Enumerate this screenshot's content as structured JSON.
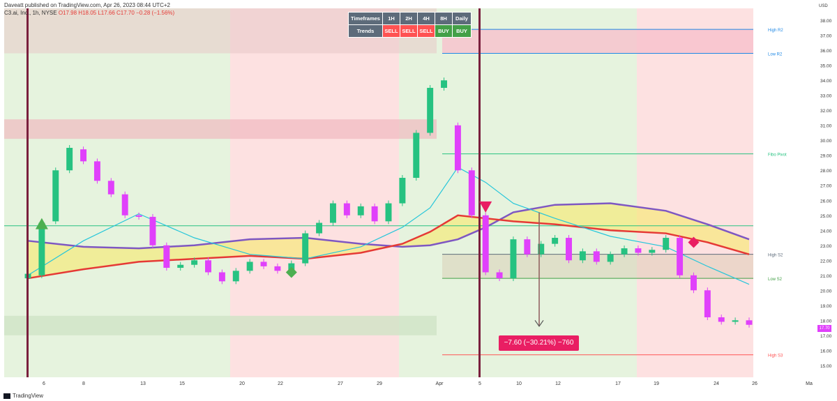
{
  "header": {
    "published": "Daveatt published on TradingView.com, Apr 26, 2023 08:44 UTC+2",
    "symbol": "C3.ai, Inc., 1h, NYSE",
    "ohlc": "O17.98 H18.05 L17.66 C17.70 −0.28 (−1.56%)"
  },
  "trend_table": {
    "head_label": "Timeframes",
    "row_label": "Trends",
    "timeframes": [
      "1H",
      "2H",
      "4H",
      "8H",
      "Daily"
    ],
    "trends": [
      "SELL",
      "SELL",
      "SELL",
      "BUY",
      "BUY"
    ]
  },
  "measure": {
    "label": "−7.60 (−30.21%) −760"
  },
  "price_tag": "17.70",
  "footer": {
    "brand": "TradingView"
  },
  "colors": {
    "bull": "#26c281",
    "bear": "#e040fb",
    "fast_ma": "#26c6da",
    "mid_ma": "#e53935",
    "slow_ma": "#7e57c2",
    "buy_zone": "#e6f3de",
    "sell_zone": "#fde1e1",
    "fill": "#f7e96a"
  },
  "chart_data": {
    "type": "line",
    "yaxis": {
      "unit": "USD",
      "ylim": [
        14.2,
        38.8
      ],
      "ticks": [
        15,
        16,
        17,
        18,
        19,
        20,
        21,
        22,
        23,
        24,
        25,
        26,
        27,
        28,
        29,
        30,
        31,
        32,
        33,
        34,
        35,
        36,
        37,
        38
      ]
    },
    "xaxis": {
      "tick_labels": [
        "6",
        "8",
        "13",
        "15",
        "20",
        "22",
        "27",
        "29",
        "Apr",
        "5",
        "10",
        "12",
        "17",
        "19",
        "24",
        "26",
        "Ma"
      ]
    },
    "price_series": [
      {
        "x": 0,
        "o": 20.8,
        "c": 21.1
      },
      {
        "x": 1,
        "o": 21.0,
        "c": 24.5
      },
      {
        "x": 2,
        "o": 24.6,
        "c": 28.0
      },
      {
        "x": 3,
        "o": 28.0,
        "c": 29.5
      },
      {
        "x": 4,
        "o": 29.4,
        "c": 28.6
      },
      {
        "x": 5,
        "o": 28.6,
        "c": 27.3
      },
      {
        "x": 6,
        "o": 27.3,
        "c": 26.4
      },
      {
        "x": 7,
        "o": 26.4,
        "c": 25.0
      },
      {
        "x": 8,
        "o": 25.0,
        "c": 24.9
      },
      {
        "x": 9,
        "o": 24.9,
        "c": 23.0
      },
      {
        "x": 10,
        "o": 23.0,
        "c": 21.5
      },
      {
        "x": 11,
        "o": 21.5,
        "c": 21.7
      },
      {
        "x": 12,
        "o": 21.7,
        "c": 22.0
      },
      {
        "x": 13,
        "o": 22.0,
        "c": 21.2
      },
      {
        "x": 14,
        "o": 21.2,
        "c": 20.6
      },
      {
        "x": 15,
        "o": 20.6,
        "c": 21.3
      },
      {
        "x": 16,
        "o": 21.3,
        "c": 21.9
      },
      {
        "x": 17,
        "o": 21.9,
        "c": 21.6
      },
      {
        "x": 18,
        "o": 21.6,
        "c": 21.3
      },
      {
        "x": 19,
        "o": 21.3,
        "c": 21.8
      },
      {
        "x": 20,
        "o": 21.8,
        "c": 23.8
      },
      {
        "x": 21,
        "o": 23.8,
        "c": 24.5
      },
      {
        "x": 22,
        "o": 24.5,
        "c": 25.8
      },
      {
        "x": 23,
        "o": 25.8,
        "c": 25.0
      },
      {
        "x": 24,
        "o": 25.0,
        "c": 25.6
      },
      {
        "x": 25,
        "o": 25.6,
        "c": 24.6
      },
      {
        "x": 26,
        "o": 24.6,
        "c": 25.8
      },
      {
        "x": 27,
        "o": 25.8,
        "c": 27.5
      },
      {
        "x": 28,
        "o": 27.5,
        "c": 30.5
      },
      {
        "x": 29,
        "o": 30.5,
        "c": 33.5
      },
      {
        "x": 30,
        "o": 33.5,
        "c": 34.0
      },
      {
        "x": 31,
        "o": 31.0,
        "c": 28.0
      },
      {
        "x": 32,
        "o": 28.0,
        "c": 25.0
      },
      {
        "x": 33,
        "o": 25.0,
        "c": 21.2
      },
      {
        "x": 34,
        "o": 21.2,
        "c": 20.8
      },
      {
        "x": 35,
        "o": 20.8,
        "c": 23.4
      },
      {
        "x": 36,
        "o": 23.4,
        "c": 22.4
      },
      {
        "x": 37,
        "o": 22.4,
        "c": 23.1
      },
      {
        "x": 38,
        "o": 23.1,
        "c": 23.5
      },
      {
        "x": 39,
        "o": 23.5,
        "c": 22.0
      },
      {
        "x": 40,
        "o": 22.0,
        "c": 22.6
      },
      {
        "x": 41,
        "o": 22.6,
        "c": 21.9
      },
      {
        "x": 42,
        "o": 21.9,
        "c": 22.4
      },
      {
        "x": 43,
        "o": 22.4,
        "c": 22.8
      },
      {
        "x": 44,
        "o": 22.8,
        "c": 22.5
      },
      {
        "x": 45,
        "o": 22.5,
        "c": 22.7
      },
      {
        "x": 46,
        "o": 22.7,
        "c": 23.5
      },
      {
        "x": 47,
        "o": 23.5,
        "c": 21.0
      },
      {
        "x": 48,
        "o": 21.0,
        "c": 20.0
      },
      {
        "x": 49,
        "o": 20.0,
        "c": 18.2
      },
      {
        "x": 50,
        "o": 18.2,
        "c": 17.9
      },
      {
        "x": 51,
        "o": 17.9,
        "c": 18.0
      },
      {
        "x": 52,
        "o": 18.0,
        "c": 17.7
      }
    ],
    "fast_ma": [
      {
        "x": 0,
        "y": 21.0
      },
      {
        "x": 4,
        "y": 23.3
      },
      {
        "x": 8,
        "y": 25.1
      },
      {
        "x": 12,
        "y": 23.5
      },
      {
        "x": 16,
        "y": 22.4
      },
      {
        "x": 20,
        "y": 22.1
      },
      {
        "x": 24,
        "y": 22.9
      },
      {
        "x": 27,
        "y": 24.2
      },
      {
        "x": 29,
        "y": 25.5
      },
      {
        "x": 31,
        "y": 28.2
      },
      {
        "x": 33,
        "y": 27.2
      },
      {
        "x": 35,
        "y": 25.8
      },
      {
        "x": 38,
        "y": 24.8
      },
      {
        "x": 42,
        "y": 23.6
      },
      {
        "x": 46,
        "y": 22.9
      },
      {
        "x": 49,
        "y": 21.6
      },
      {
        "x": 52,
        "y": 20.4
      }
    ],
    "mid_ma": [
      {
        "x": 0,
        "y": 20.8
      },
      {
        "x": 4,
        "y": 21.4
      },
      {
        "x": 8,
        "y": 21.9
      },
      {
        "x": 12,
        "y": 22.1
      },
      {
        "x": 16,
        "y": 22.3
      },
      {
        "x": 20,
        "y": 22.1
      },
      {
        "x": 24,
        "y": 22.5
      },
      {
        "x": 27,
        "y": 23.1
      },
      {
        "x": 29,
        "y": 23.9
      },
      {
        "x": 31,
        "y": 25.0
      },
      {
        "x": 33,
        "y": 24.8
      },
      {
        "x": 35,
        "y": 24.6
      },
      {
        "x": 38,
        "y": 24.4
      },
      {
        "x": 42,
        "y": 24.0
      },
      {
        "x": 46,
        "y": 23.8
      },
      {
        "x": 49,
        "y": 23.2
      },
      {
        "x": 52,
        "y": 22.4
      }
    ],
    "slow_ma": [
      {
        "x": 0,
        "y": 23.3
      },
      {
        "x": 4,
        "y": 22.9
      },
      {
        "x": 8,
        "y": 22.8
      },
      {
        "x": 12,
        "y": 23.0
      },
      {
        "x": 16,
        "y": 23.4
      },
      {
        "x": 20,
        "y": 23.5
      },
      {
        "x": 24,
        "y": 23.1
      },
      {
        "x": 27,
        "y": 22.9
      },
      {
        "x": 29,
        "y": 23.0
      },
      {
        "x": 31,
        "y": 23.4
      },
      {
        "x": 33,
        "y": 24.2
      },
      {
        "x": 35,
        "y": 25.2
      },
      {
        "x": 38,
        "y": 25.7
      },
      {
        "x": 42,
        "y": 25.8
      },
      {
        "x": 46,
        "y": 25.3
      },
      {
        "x": 49,
        "y": 24.4
      },
      {
        "x": 52,
        "y": 23.4
      }
    ],
    "levels": [
      {
        "label": "High R2",
        "y": 37.4,
        "color": "#1e88e5"
      },
      {
        "label": "Low R2",
        "y": 35.8,
        "color": "#1e88e5"
      },
      {
        "label": "Fibo Pivot",
        "y": 29.1,
        "color": "#26c281"
      },
      {
        "label": "High S2",
        "y": 22.4,
        "color": "#5d6b7a"
      },
      {
        "label": "Low S2",
        "y": 20.8,
        "color": "#43a047"
      },
      {
        "label": "High S3",
        "y": 15.7,
        "color": "#ff5252"
      }
    ],
    "signals": [
      {
        "type": "buy-triangle",
        "x": 1,
        "y": 24.4
      },
      {
        "type": "sell-triangle",
        "x": 33,
        "y": 25.6
      },
      {
        "type": "buy-diamond",
        "x": 19,
        "y": 21.2
      },
      {
        "type": "sell-diamond",
        "x": 48,
        "y": 23.2
      }
    ]
  }
}
